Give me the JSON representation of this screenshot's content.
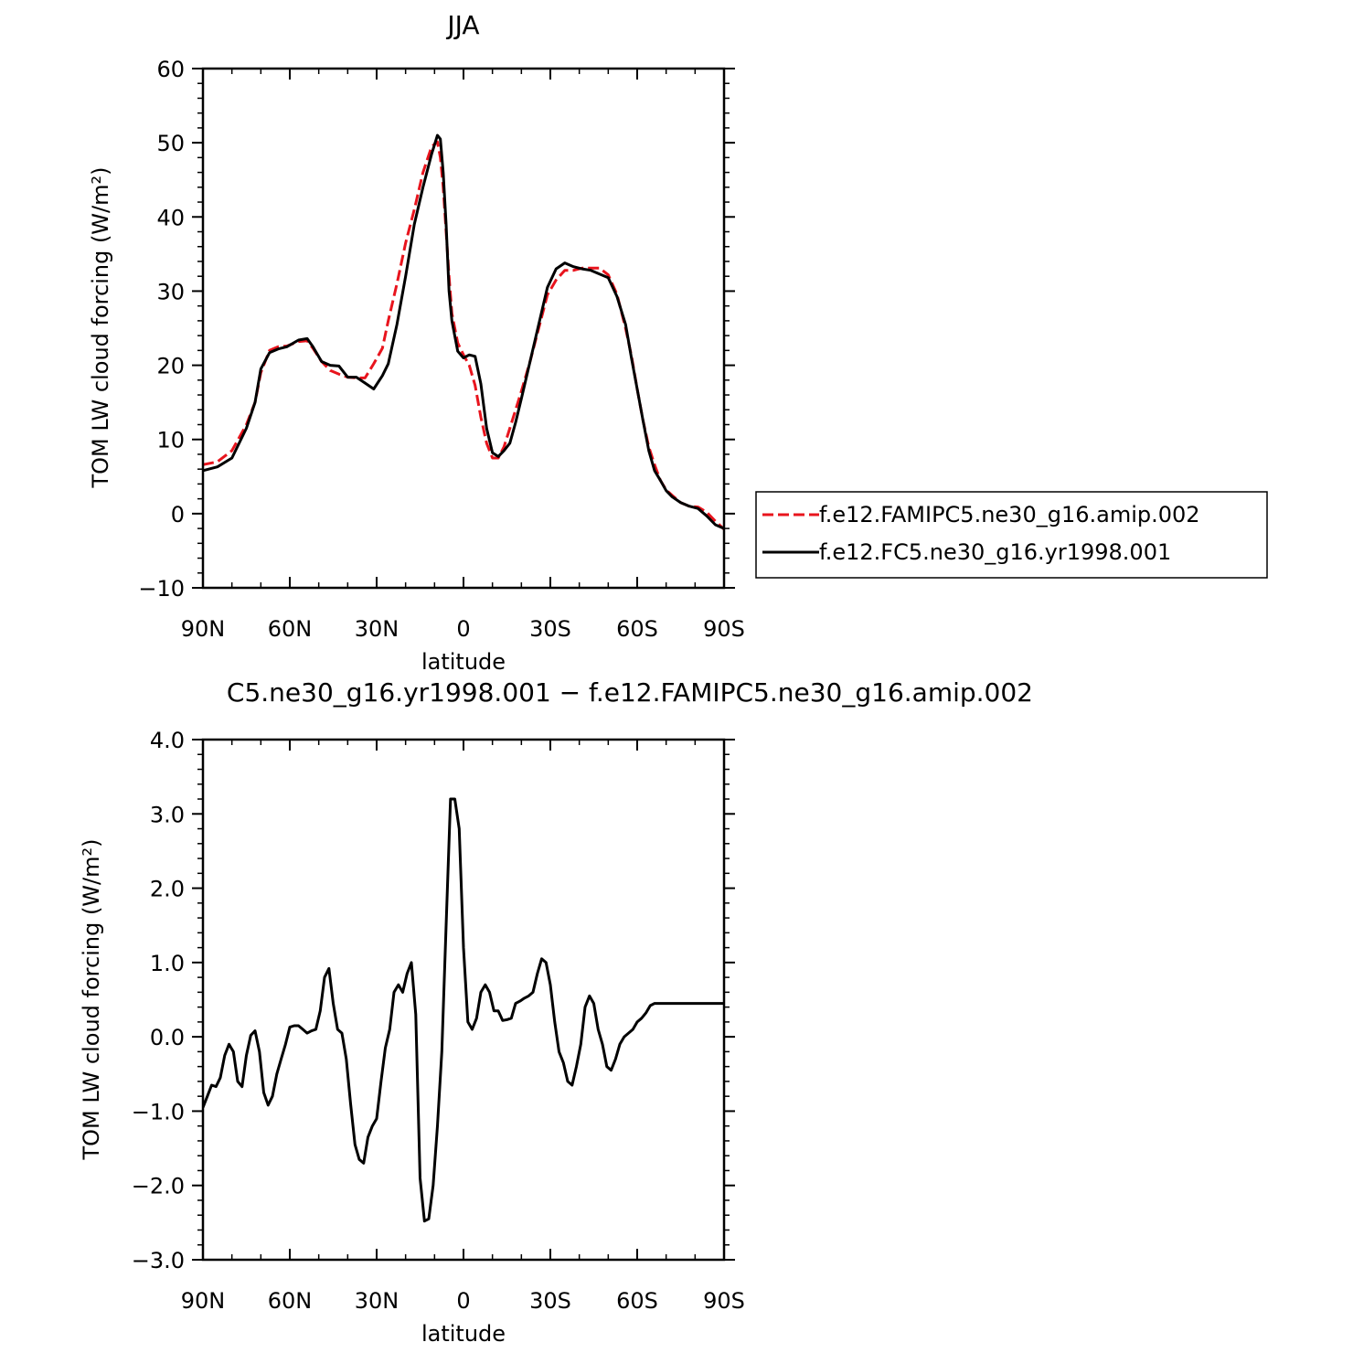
{
  "chart_data": [
    {
      "type": "line",
      "title": "JJA",
      "xlabel": "latitude",
      "ylabel": "TOM LW cloud forcing (W/m²)",
      "xlim": [
        90,
        -90
      ],
      "ylim": [
        -10,
        60
      ],
      "xticks": [
        {
          "v": 90,
          "label": "90N"
        },
        {
          "v": 60,
          "label": "60N"
        },
        {
          "v": 30,
          "label": "30N"
        },
        {
          "v": 0,
          "label": "0"
        },
        {
          "v": -30,
          "label": "30S"
        },
        {
          "v": -60,
          "label": "60S"
        },
        {
          "v": -90,
          "label": "90S"
        }
      ],
      "yticks": [
        {
          "v": 60,
          "label": "60"
        },
        {
          "v": 50,
          "label": "50"
        },
        {
          "v": 40,
          "label": "40"
        },
        {
          "v": 30,
          "label": "30"
        },
        {
          "v": 20,
          "label": "20"
        },
        {
          "v": 10,
          "label": "10"
        },
        {
          "v": 0,
          "label": "0"
        },
        {
          "v": -10,
          "label": "−10"
        }
      ],
      "legend_position": "right",
      "series": [
        {
          "name": "f.e12.FAMIPC5.ne30_g16.amip.002",
          "color": "#e8141d",
          "style": "dashed",
          "x": [
            90,
            85,
            80,
            75,
            72,
            70,
            67,
            64,
            61,
            57,
            54,
            52,
            49,
            46,
            43,
            40,
            37,
            34,
            31,
            28,
            26,
            23,
            20,
            17,
            14,
            11,
            9,
            8,
            7,
            6,
            5,
            4,
            2,
            0,
            -2,
            -4,
            -6,
            -8,
            -10,
            -12,
            -14,
            -16,
            -18,
            -20,
            -23,
            -26,
            -29,
            -32,
            -35,
            -38,
            -41,
            -44,
            -47,
            -50,
            -53,
            -56,
            -58,
            -60,
            -62,
            -64,
            -66,
            -68,
            -70,
            -72,
            -75,
            -78,
            -81,
            -84,
            -87,
            -90
          ],
          "y": [
            6.6,
            7.0,
            8.5,
            12,
            15,
            19,
            22,
            22.5,
            22.6,
            23.2,
            23.3,
            22.3,
            20.5,
            19.3,
            18.8,
            18.4,
            18.3,
            18.3,
            20.2,
            22.3,
            26,
            31,
            36.5,
            41,
            46,
            49.5,
            50.1,
            48,
            44,
            38,
            32,
            27,
            23,
            21.4,
            20,
            17.3,
            13,
            9.5,
            7.5,
            7.5,
            9,
            11.5,
            14,
            16.5,
            20.5,
            25,
            29.5,
            31.5,
            32.8,
            32.8,
            33.1,
            33.1,
            33.1,
            32.2,
            29.6,
            25,
            21.3,
            16.8,
            12.6,
            9,
            6.6,
            4.5,
            3.2,
            2.5,
            1.5,
            1.0,
            0.9,
            0.2,
            -1.0,
            -2.1
          ]
        },
        {
          "name": "f.e12.FC5.ne30_g16.yr1998.001",
          "color": "#000000",
          "style": "solid",
          "x": [
            90,
            85,
            80,
            75,
            72,
            70,
            67,
            64,
            61,
            57,
            54,
            52,
            49,
            46,
            43,
            40,
            37,
            34,
            31,
            28,
            26,
            23,
            20,
            17,
            14,
            11,
            9,
            8,
            7,
            6,
            5,
            4,
            2,
            0,
            -2,
            -4,
            -6,
            -8,
            -10,
            -12,
            -14,
            -16,
            -18,
            -20,
            -23,
            -26,
            -29,
            -32,
            -35,
            -38,
            -41,
            -44,
            -47,
            -50,
            -53,
            -56,
            -58,
            -60,
            -62,
            -64,
            -66,
            -68,
            -70,
            -72,
            -75,
            -78,
            -81,
            -84,
            -87,
            -90
          ],
          "y": [
            5.8,
            6.3,
            7.5,
            11.5,
            15,
            19.5,
            21.7,
            22.2,
            22.5,
            23.4,
            23.6,
            22.5,
            20.5,
            20.0,
            19.9,
            18.4,
            18.4,
            17.6,
            16.8,
            18.6,
            20.2,
            25.5,
            32,
            39,
            44,
            48.5,
            51.0,
            50.5,
            46,
            39,
            30,
            26,
            21.9,
            21.0,
            21.4,
            21.2,
            17.5,
            11.5,
            8.2,
            7.7,
            8.5,
            9.5,
            12.3,
            15.5,
            20.5,
            25.5,
            30.5,
            33.0,
            33.8,
            33.3,
            33.0,
            32.8,
            32.3,
            31.8,
            29.3,
            25.5,
            21.0,
            16.8,
            12.6,
            8.5,
            5.8,
            4.5,
            3.1,
            2.3,
            1.5,
            1.0,
            0.7,
            -0.3,
            -1.5,
            -2.0
          ]
        }
      ]
    },
    {
      "type": "line",
      "title": "C5.ne30_g16.yr1998.001 − f.e12.FAMIPC5.ne30_g16.amip.002",
      "xlabel": "latitude",
      "ylabel": "TOM LW cloud forcing (W/m²)",
      "xlim": [
        90,
        -90
      ],
      "ylim": [
        -3.0,
        4.0
      ],
      "xticks": [
        {
          "v": 90,
          "label": "90N"
        },
        {
          "v": 60,
          "label": "60N"
        },
        {
          "v": 30,
          "label": "30N"
        },
        {
          "v": 0,
          "label": "0"
        },
        {
          "v": -30,
          "label": "30S"
        },
        {
          "v": -60,
          "label": "60S"
        },
        {
          "v": -90,
          "label": "90S"
        }
      ],
      "yticks": [
        {
          "v": 4.0,
          "label": "4.0"
        },
        {
          "v": 3.0,
          "label": "3.0"
        },
        {
          "v": 2.0,
          "label": "2.0"
        },
        {
          "v": 1.0,
          "label": "1.0"
        },
        {
          "v": 0.0,
          "label": "0.0"
        },
        {
          "v": -1.0,
          "label": "−1.0"
        },
        {
          "v": -2.0,
          "label": "−2.0"
        },
        {
          "v": -3.0,
          "label": "−3.0"
        }
      ],
      "series": [
        {
          "color": "#000000",
          "style": "solid",
          "x": [
            90,
            88.5,
            87,
            85.5,
            84,
            82.5,
            81,
            79.5,
            78,
            76.5,
            75,
            73.5,
            72,
            70.5,
            69,
            67.5,
            66,
            64.5,
            63,
            61.5,
            60,
            58.5,
            57,
            55.5,
            54,
            52.5,
            51,
            49.5,
            48,
            46.5,
            45,
            43.5,
            42,
            40.5,
            39,
            37.5,
            36,
            34.5,
            33,
            31.5,
            30,
            28.5,
            27,
            25.5,
            24,
            22.5,
            21,
            19.5,
            18,
            16.5,
            15,
            13.5,
            12,
            10.5,
            9,
            7.5,
            6,
            4.5,
            3,
            1.5,
            0,
            -1.5,
            -3,
            -4.5,
            -6,
            -7.5,
            -9,
            -10.5,
            -12,
            -13.5,
            -15,
            -16.5,
            -18,
            -19.5,
            -21,
            -22.5,
            -24,
            -25.5,
            -27,
            -28.5,
            -30,
            -31.5,
            -33,
            -34.5,
            -36,
            -37.5,
            -39,
            -40.5,
            -42,
            -43.5,
            -45,
            -46.5,
            -48,
            -49.5,
            -51,
            -52.5,
            -54,
            -55.5,
            -57,
            -58.5,
            -60,
            -61.5,
            -63,
            -64.5,
            -66,
            -67.5,
            -69,
            -70.5,
            -72,
            -73.5,
            -75,
            -76.5,
            -78,
            -79.5,
            -81,
            -82.5,
            -84,
            -85.5,
            -87,
            -88.5,
            -90
          ],
          "y": [
            -0.95,
            -0.8,
            -0.65,
            -0.67,
            -0.55,
            -0.25,
            -0.1,
            -0.2,
            -0.6,
            -0.67,
            -0.25,
            0.02,
            0.08,
            -0.2,
            -0.75,
            -0.92,
            -0.8,
            -0.5,
            -0.3,
            -0.1,
            0.13,
            0.15,
            0.15,
            0.1,
            0.05,
            0.08,
            0.1,
            0.35,
            0.8,
            0.92,
            0.45,
            0.1,
            0.05,
            -0.3,
            -0.9,
            -1.45,
            -1.65,
            -1.7,
            -1.35,
            -1.2,
            -1.1,
            -0.6,
            -0.15,
            0.1,
            0.6,
            0.7,
            0.6,
            0.85,
            1.0,
            0.3,
            -1.9,
            -2.48,
            -2.45,
            -2.0,
            -1.2,
            -0.2,
            1.5,
            3.2,
            3.2,
            2.8,
            1.2,
            0.2,
            0.1,
            0.25,
            0.6,
            0.7,
            0.6,
            0.35,
            0.35,
            0.22,
            0.23,
            0.25,
            0.45,
            0.48,
            0.52,
            0.55,
            0.6,
            0.85,
            1.05,
            1.0,
            0.7,
            0.2,
            -0.2,
            -0.35,
            -0.6,
            -0.65,
            -0.4,
            -0.1,
            0.4,
            0.55,
            0.45,
            0.1,
            -0.1,
            -0.4,
            -0.45,
            -0.3,
            -0.1,
            0.0,
            0.05,
            0.1,
            0.2,
            0.25,
            0.32,
            0.42,
            0.45,
            0.45,
            0.45,
            0.45,
            0.45,
            0.45,
            0.45,
            0.45,
            0.45,
            0.45,
            0.45,
            0.45,
            0.45,
            0.45,
            0.45,
            0.45,
            0.45
          ]
        }
      ]
    }
  ]
}
